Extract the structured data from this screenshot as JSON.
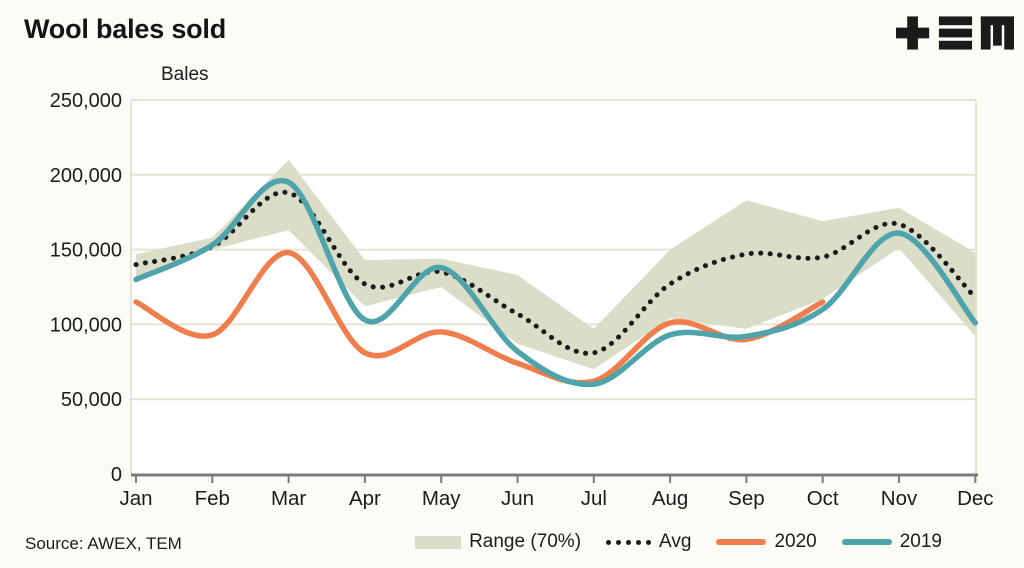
{
  "title": "Wool bales sold",
  "axis_title": "Bales",
  "source": "Source: AWEX, TEM",
  "logo_name": "TEM",
  "colors": {
    "background": "#FCFBF6",
    "plot_background": "#FFFFFF",
    "band": "#DCDDC9",
    "avg": "#1B1B1B",
    "y2020": "#F07E4D",
    "y2019": "#4FA3AB",
    "grid": "#E3E4D4",
    "axis": "#7B7B7B",
    "text": "#1C1C1C"
  },
  "legend": {
    "items": [
      {
        "label": "Range (70%)",
        "type": "band"
      },
      {
        "label": "Avg",
        "type": "dotted"
      },
      {
        "label": "2020",
        "type": "line"
      },
      {
        "label": "2019",
        "type": "line"
      }
    ]
  },
  "chart_data": {
    "type": "line",
    "title": "Wool bales sold",
    "xlabel": "",
    "ylabel": "Bales",
    "ylim": [
      0,
      250000
    ],
    "grid": true,
    "legend_position": "bottom",
    "yticks": [
      0,
      50000,
      100000,
      150000,
      200000,
      250000
    ],
    "ytick_labels": [
      "0",
      "50,000",
      "100,000",
      "150,000",
      "200,000",
      "250,000"
    ],
    "categories": [
      "Jan",
      "Feb",
      "Mar",
      "Apr",
      "May",
      "Jun",
      "Jul",
      "Aug",
      "Sep",
      "Oct",
      "Nov",
      "Dec"
    ],
    "band": {
      "name": "Range (70%)",
      "low": [
        128000,
        150000,
        163000,
        112000,
        125000,
        87000,
        70000,
        104000,
        97000,
        117000,
        151000,
        92000
      ],
      "high": [
        147000,
        158000,
        210000,
        143000,
        144000,
        133000,
        97000,
        150000,
        183000,
        169000,
        178000,
        148000
      ]
    },
    "series": [
      {
        "name": "Avg",
        "style": "dotted",
        "values": [
          140000,
          152000,
          188000,
          127000,
          135000,
          107000,
          81000,
          127000,
          147000,
          145000,
          167000,
          118000
        ]
      },
      {
        "name": "2020",
        "style": "solid",
        "values": [
          115000,
          93000,
          148000,
          81000,
          95000,
          74000,
          62000,
          101000,
          90000,
          115000,
          null,
          null
        ]
      },
      {
        "name": "2019",
        "style": "solid",
        "values": [
          130000,
          153000,
          195000,
          103000,
          138000,
          82000,
          60000,
          93000,
          92000,
          110000,
          161000,
          101000
        ]
      }
    ]
  }
}
